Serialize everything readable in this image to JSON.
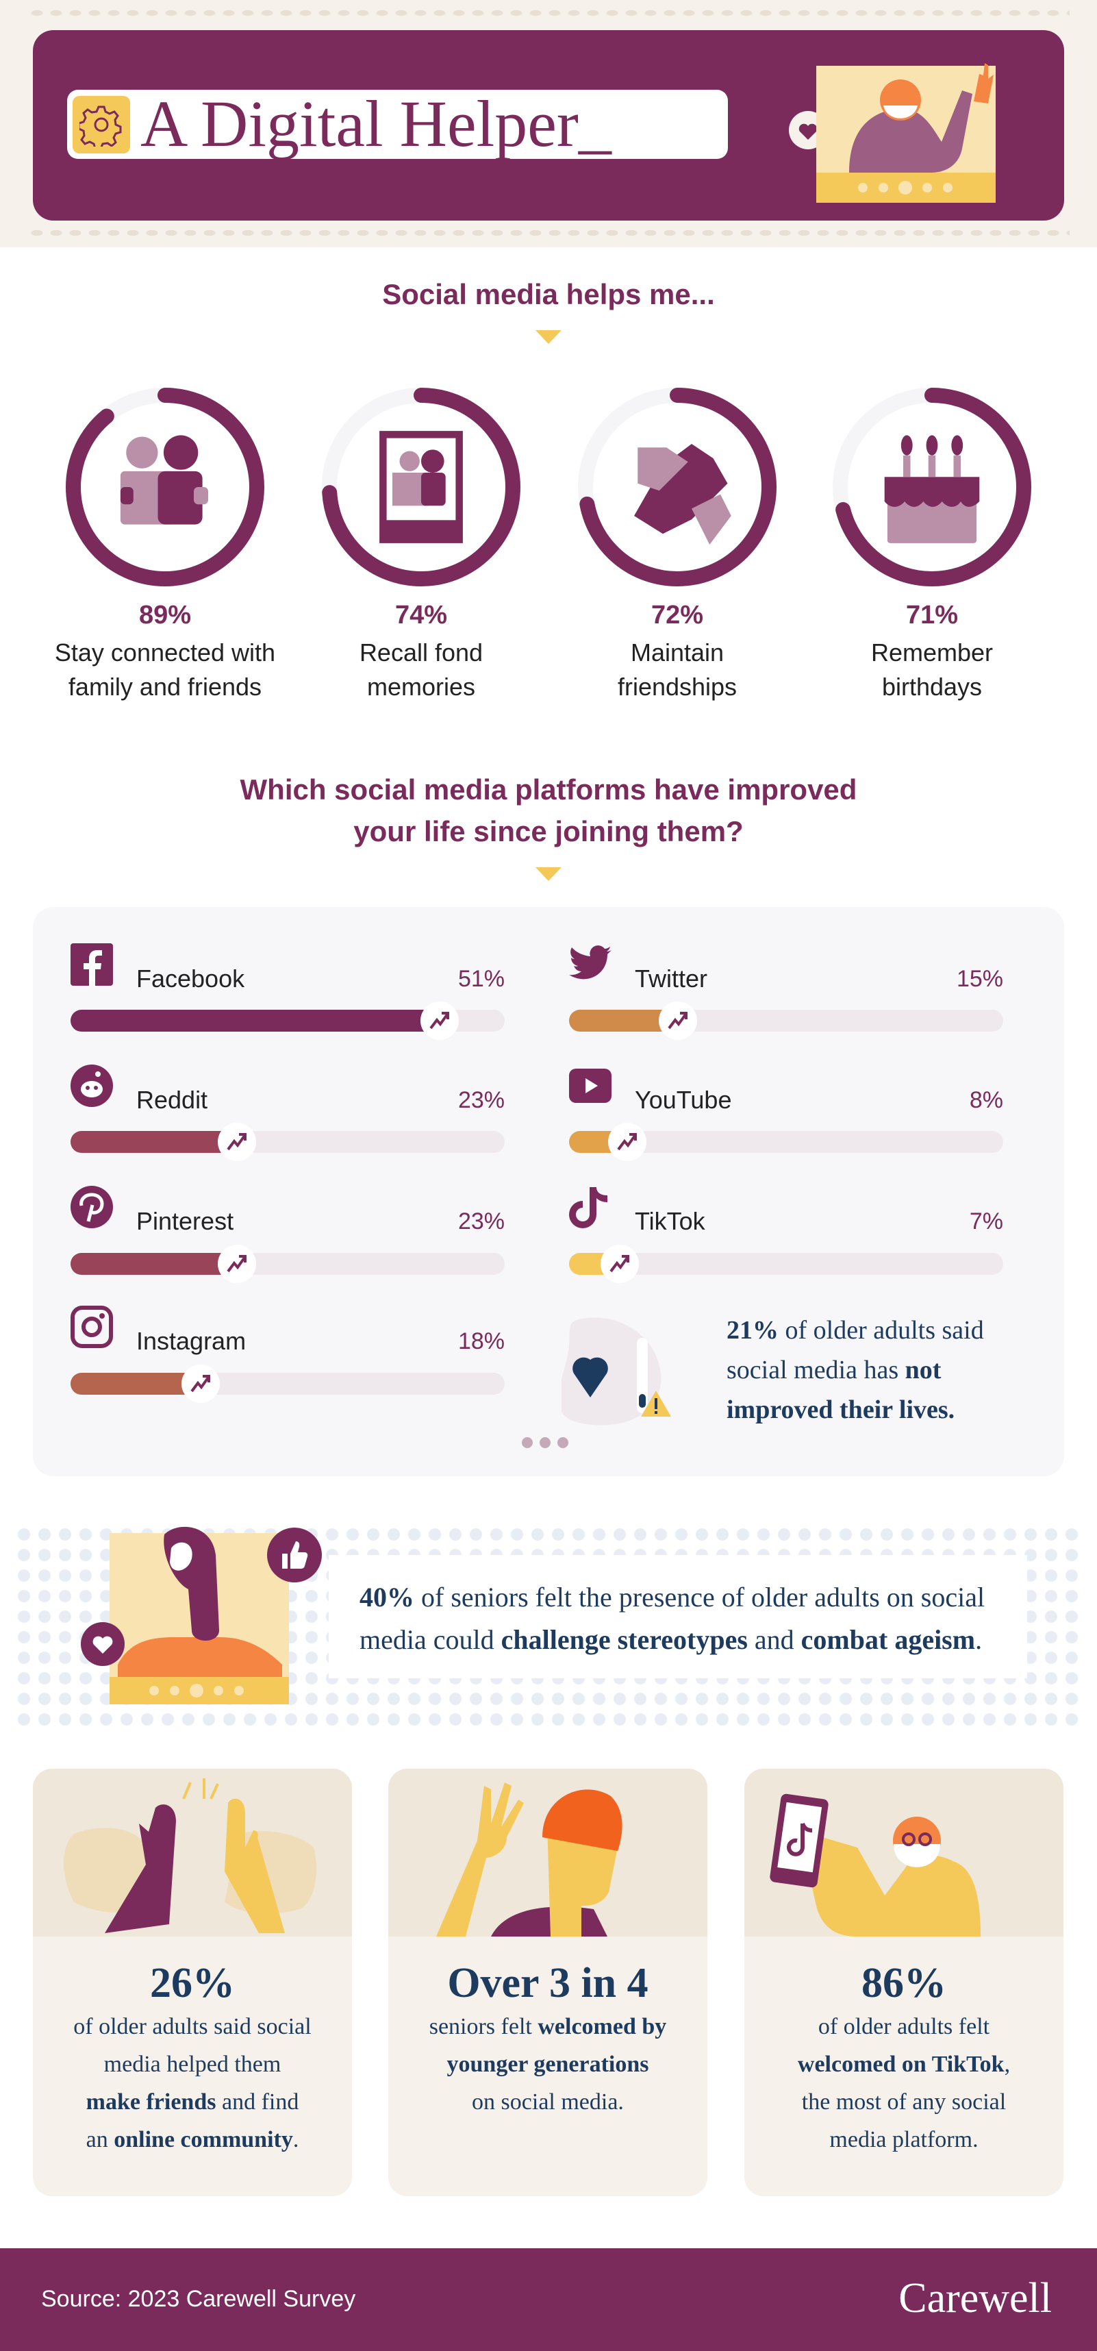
{
  "header": {
    "title": "A Digital Helper_",
    "icon": "gear-icon"
  },
  "section1": {
    "heading": "Social media helps me...",
    "items": [
      {
        "pct": "89%",
        "value": 89,
        "icon": "people-hugging-icon",
        "lines": [
          "Stay connected with",
          "family and friends"
        ]
      },
      {
        "pct": "74%",
        "value": 74,
        "icon": "photo-frame-icon",
        "lines": [
          "Recall fond",
          "memories"
        ]
      },
      {
        "pct": "72%",
        "value": 72,
        "icon": "handshake-icon",
        "lines": [
          "Maintain",
          "friendships"
        ]
      },
      {
        "pct": "71%",
        "value": 71,
        "icon": "birthday-cake-icon",
        "lines": [
          "Remember",
          "birthdays"
        ]
      }
    ]
  },
  "section2": {
    "heading_lines": [
      "Which social media platforms have improved",
      "your life since joining them?"
    ],
    "notice": {
      "lines": [
        [
          {
            "t": "21%",
            "b": true
          },
          {
            "t": " of older adults said"
          }
        ],
        [
          {
            "t": "social media has "
          },
          {
            "t": "not",
            "b": true
          }
        ],
        [
          {
            "t": "improved their lives.",
            "b": true
          }
        ]
      ]
    }
  },
  "ageism": {
    "lines": [
      [
        {
          "t": "40%",
          "b": true
        },
        {
          "t": " of seniors felt the presence of older adults on social"
        }
      ],
      [
        {
          "t": "media could "
        },
        {
          "t": "challenge stereotypes",
          "b": true
        },
        {
          "t": " and "
        },
        {
          "t": "combat ageism",
          "b": true
        },
        {
          "t": "."
        }
      ]
    ]
  },
  "cards": [
    {
      "stat": "26%",
      "lines": [
        [
          {
            "t": "of older adults said social"
          }
        ],
        [
          {
            "t": "media helped them"
          }
        ],
        [
          {
            "t": "make friends",
            "b": true
          },
          {
            "t": " and find"
          }
        ],
        [
          {
            "t": "an "
          },
          {
            "t": "online community",
            "b": true
          },
          {
            "t": "."
          }
        ]
      ]
    },
    {
      "stat": "Over 3 in 4",
      "lines": [
        [
          {
            "t": "seniors felt "
          },
          {
            "t": "welcomed by",
            "b": true
          }
        ],
        [
          {
            "t": "younger generations",
            "b": true
          }
        ],
        [
          {
            "t": "on social media."
          }
        ]
      ]
    },
    {
      "stat": "86%",
      "lines": [
        [
          {
            "t": "of older adults felt"
          }
        ],
        [
          {
            "t": "welcomed on TikTok",
            "b": true
          },
          {
            "t": ","
          }
        ],
        [
          {
            "t": "the most of any social"
          }
        ],
        [
          {
            "t": "media platform."
          }
        ]
      ]
    }
  ],
  "footer": {
    "source": "Source: 2023 Carewell Survey",
    "brand": "Carewell"
  },
  "colors": {
    "primary": "#7a2b5c",
    "accent": "#f5c85a",
    "navy": "#1d3a5f",
    "cream": "#f6f2eb"
  },
  "chart_data": [
    {
      "type": "bar",
      "orientation": "horizontal",
      "categories": [
        "Facebook",
        "Reddit",
        "Pinterest",
        "Instagram",
        "Twitter",
        "YouTube",
        "TikTok"
      ],
      "values": [
        51,
        23,
        23,
        18,
        15,
        8,
        7
      ],
      "labels": [
        "51%",
        "23%",
        "23%",
        "18%",
        "15%",
        "8%",
        "7%"
      ],
      "icons": [
        "facebook-icon",
        "reddit-icon",
        "pinterest-icon",
        "instagram-icon",
        "twitter-icon",
        "youtube-icon",
        "tiktok-icon"
      ],
      "colors": [
        "#7a2b5c",
        "#9a4459",
        "#9a4459",
        "#b5644e",
        "#d08a4a",
        "#e2a24a",
        "#f5c85a"
      ],
      "unit": "%"
    },
    {
      "type": "pie",
      "style": "progress-rings",
      "categories": [
        "Stay connected with family and friends",
        "Recall fond memories",
        "Maintain friendships",
        "Remember birthdays"
      ],
      "values": [
        89,
        74,
        72,
        71
      ],
      "unit": "%"
    }
  ]
}
